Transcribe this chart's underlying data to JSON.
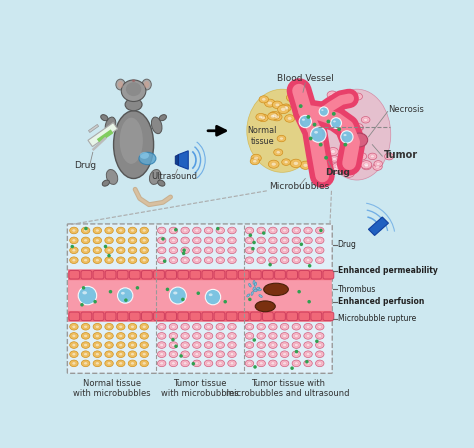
{
  "bg_color": "#cde8f0",
  "arrow_color": "#111111",
  "blood_vessel_wall": "#e8406a",
  "blood_vessel_inner": "#f88098",
  "normal_tissue_color": "#f5c030",
  "normal_tissue_fill": "#f0c060",
  "tumor_color": "#f0b0c0",
  "tumor_fill": "#f8c8d0",
  "necrosis_color": "#d86080",
  "microbubble_color": "#70c8e8",
  "drug_color": "#30a050",
  "thrombus_color": "#7a3010",
  "cell_fill_normal": "#f0c060",
  "cell_border_normal": "#d09020",
  "cell_fill_tumor": "#f8b8c8",
  "cell_border_tumor": "#d06080",
  "vessel_cell_fill": "#f06878",
  "vessel_cell_border": "#d04060",
  "vessel_lumen": "#f89aaa",
  "vessel_wall_bg": "#f06878",
  "label_color": "#333333",
  "legend_line_color": "#888888",
  "bottom_bg": "#e0f0f8",
  "bottom_border": "#999999",
  "text_drug_mouse": "Drug",
  "text_ultrasound": "Ultrasound",
  "text_blood_vessel": "Blood Vessel",
  "text_normal_tissue": "Normal\ntissue",
  "text_drug_top": "Drug",
  "text_microbubbles": "Microbubbles",
  "text_necrosis": "Necrosis",
  "text_tumor": "Tumor",
  "text_drug_legend": "Drug",
  "text_enhanced_perm": "Enhanced permeability",
  "text_thrombus": "Thrombus",
  "text_enhanced_perf": "Enhanced perfusion",
  "text_microbubble_rupture": "Microbubble rupture",
  "text_normal_tissue_micro": "Normal tissue\nwith microbubbles",
  "text_tumor_micro": "Tumor tissue\nwith microbubbles",
  "text_tumor_ultra": "Tumor tissue with\nmicrobubbles and ultrasound"
}
